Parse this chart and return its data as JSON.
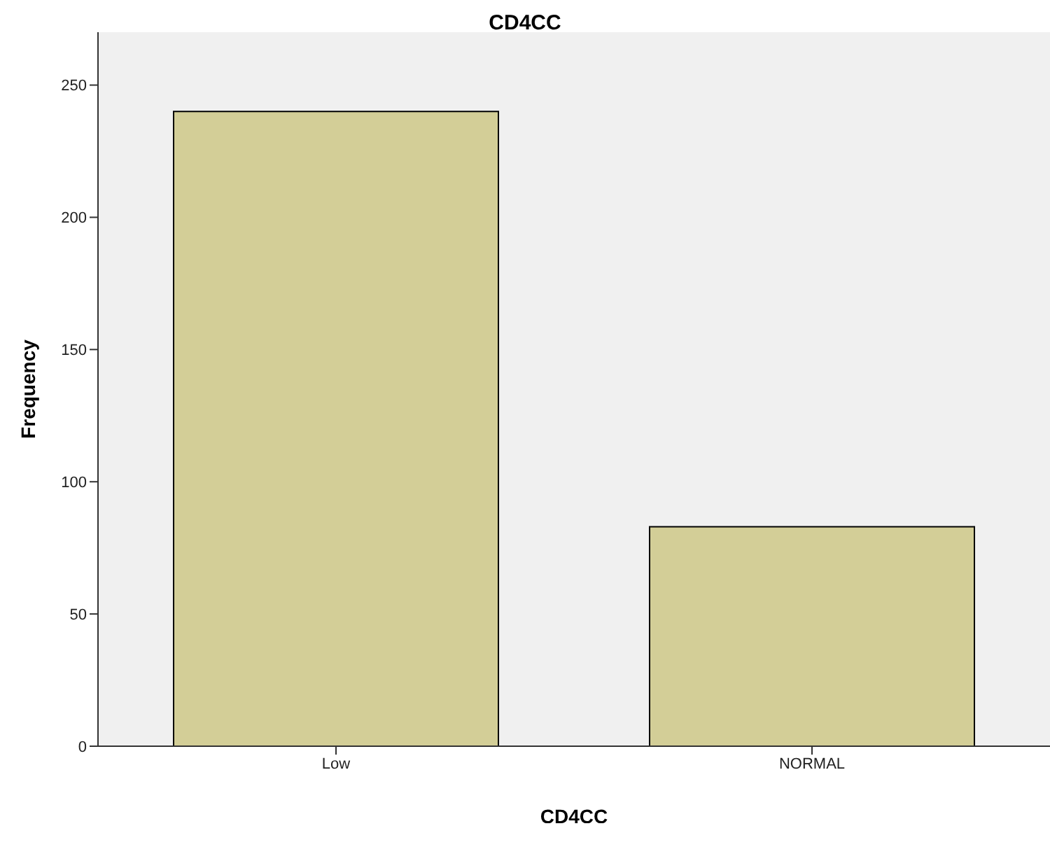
{
  "chart_data": {
    "type": "bar",
    "title": "CD4CC",
    "xlabel": "CD4CC",
    "ylabel": "Frequency",
    "categories": [
      "Low",
      "NORMAL"
    ],
    "values": [
      240,
      83
    ],
    "color": "#d3ce97",
    "ylim": [
      0,
      270
    ],
    "yticks": [
      0,
      50,
      100,
      150,
      200,
      250
    ],
    "grid": false,
    "legend": false
  }
}
